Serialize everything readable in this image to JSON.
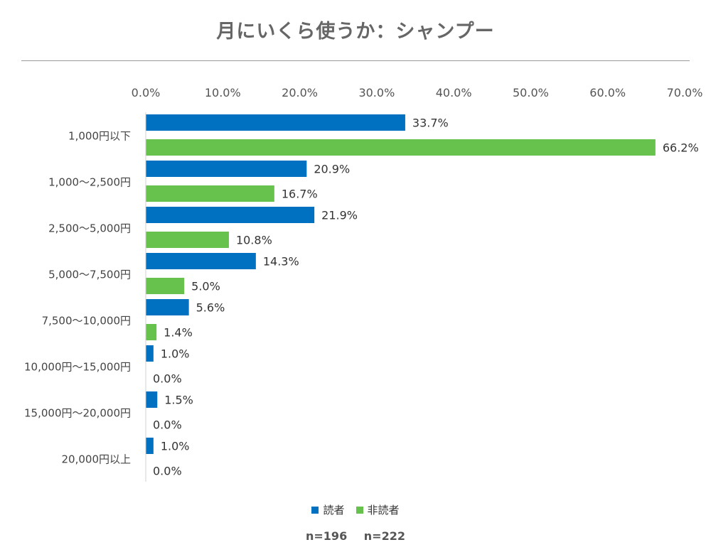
{
  "chart_data": {
    "type": "bar",
    "orientation": "horizontal",
    "title": "月にいくら使うか：シャンプー",
    "categories": [
      "1,000円以下",
      "1,000〜2,500円",
      "2,500〜5,000円",
      "5,000〜7,500円",
      "7,500〜10,000円",
      "10,000円〜15,000円",
      "15,000円〜20,000円",
      "20,000円以上"
    ],
    "series": [
      {
        "name": "読者",
        "color": "#0070c0",
        "values": [
          33.7,
          20.9,
          21.9,
          14.3,
          5.6,
          1.0,
          1.5,
          1.0
        ]
      },
      {
        "name": "非読者",
        "color": "#66c24d",
        "values": [
          66.2,
          16.7,
          10.8,
          5.0,
          1.4,
          0.0,
          0.0,
          0.0
        ]
      }
    ],
    "x_ticks": [
      "0.0%",
      "10.0%",
      "20.0%",
      "30.0%",
      "40.0%",
      "50.0%",
      "60.0%",
      "70.0%"
    ],
    "xlim": [
      0,
      70
    ],
    "value_suffix": "%",
    "x_axis_position": "top",
    "legend_position": "bottom",
    "grid": false
  },
  "sample_sizes": [
    "n=196",
    "n=222"
  ]
}
